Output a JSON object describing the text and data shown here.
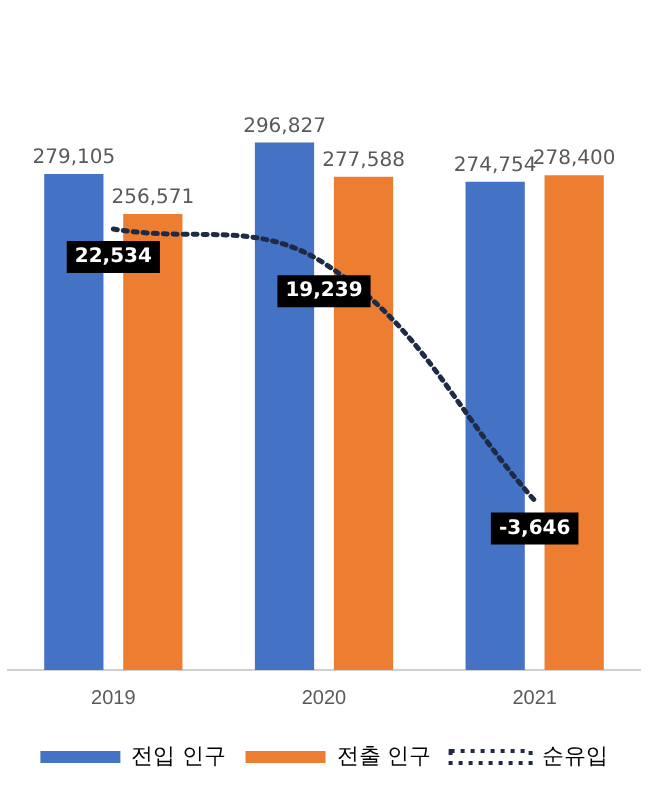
{
  "chart_data": {
    "type": "bar",
    "categories": [
      "2019",
      "2020",
      "2021"
    ],
    "series": [
      {
        "name": "전입 인구",
        "color": "#4472c4",
        "values": [
          279105,
          296827,
          274754
        ],
        "value_labels": [
          "279,105",
          "296,827",
          "274,754"
        ]
      },
      {
        "name": "전출 인구",
        "color": "#ed7d31",
        "values": [
          256571,
          277588,
          278400
        ],
        "value_labels": [
          "256,571",
          "277,588",
          "278,400"
        ]
      },
      {
        "name": "순유입",
        "type": "line",
        "axis": "y2",
        "color": "#1f2a44",
        "values": [
          22534,
          19239,
          -3646
        ],
        "value_labels": [
          "22,534",
          "19,239",
          "-3,646"
        ]
      }
    ],
    "legend": "bottom",
    "grid": false,
    "marker": "none",
    "line_style": "dotted"
  }
}
